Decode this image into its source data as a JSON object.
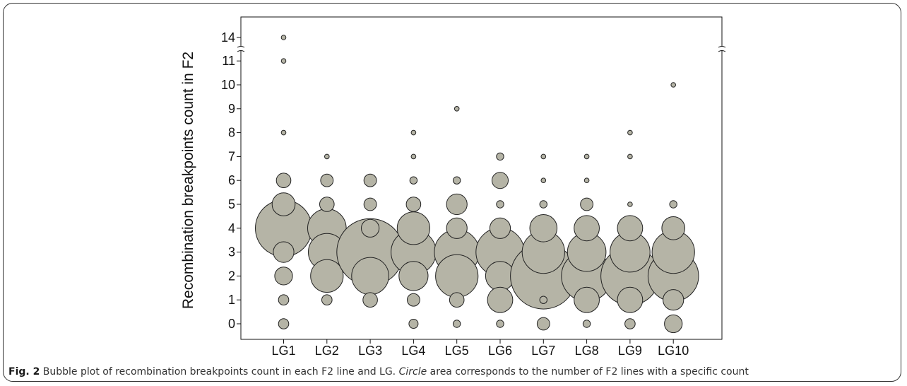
{
  "caption": {
    "label": "Fig. 2",
    "text_before": " Bubble plot of recombination breakpoints count in each F2 line and LG. ",
    "italic": "Circle",
    "text_after": " area corresponds to the number of F2 lines with a specific count"
  },
  "chart_data": {
    "type": "scatter",
    "subtype": "bubble",
    "title": "",
    "xlabel": "",
    "ylabel": "Recombination breakpoints count in F2",
    "categories": [
      "LG1",
      "LG2",
      "LG3",
      "LG4",
      "LG5",
      "LG6",
      "LG7",
      "LG8",
      "LG9",
      "LG10"
    ],
    "y_ticks": [
      0,
      1,
      2,
      3,
      4,
      5,
      6,
      7,
      8,
      9,
      10,
      11,
      14
    ],
    "y_axis_break": "between 11 and 14",
    "bubble_fill": "#b5b4a6",
    "bubble_stroke": "#222222",
    "size_meaning": "circle area = number of F2 lines with the count",
    "series": [
      {
        "category": "LG1",
        "points": [
          {
            "y": 0,
            "n": 1
          },
          {
            "y": 1,
            "n": 1
          },
          {
            "y": 2,
            "n": 3
          },
          {
            "y": 3,
            "n": 4
          },
          {
            "y": 4,
            "n": 30
          },
          {
            "y": 5,
            "n": 5
          },
          {
            "y": 6,
            "n": 2
          },
          {
            "y": 8,
            "n": 0.2
          },
          {
            "y": 11,
            "n": 0.2
          },
          {
            "y": 14,
            "n": 0.2
          }
        ]
      },
      {
        "category": "LG2",
        "points": [
          {
            "y": 1,
            "n": 1
          },
          {
            "y": 2,
            "n": 10
          },
          {
            "y": 3,
            "n": 13
          },
          {
            "y": 4,
            "n": 14
          },
          {
            "y": 5,
            "n": 2
          },
          {
            "y": 6,
            "n": 1.5
          },
          {
            "y": 7,
            "n": 0.2
          }
        ]
      },
      {
        "category": "LG3",
        "points": [
          {
            "y": 1,
            "n": 2
          },
          {
            "y": 2,
            "n": 13
          },
          {
            "y": 3,
            "n": 42
          },
          {
            "y": 4,
            "n": 3
          },
          {
            "y": 5,
            "n": 1.5
          },
          {
            "y": 6,
            "n": 1.5
          }
        ]
      },
      {
        "category": "LG4",
        "points": [
          {
            "y": 0,
            "n": 0.8
          },
          {
            "y": 1,
            "n": 1.5
          },
          {
            "y": 2,
            "n": 8
          },
          {
            "y": 3,
            "n": 19
          },
          {
            "y": 4,
            "n": 10
          },
          {
            "y": 5,
            "n": 2
          },
          {
            "y": 6,
            "n": 0.5
          },
          {
            "y": 7,
            "n": 0.2
          },
          {
            "y": 8,
            "n": 0.2
          }
        ]
      },
      {
        "category": "LG5",
        "points": [
          {
            "y": 0,
            "n": 0.5
          },
          {
            "y": 1,
            "n": 2
          },
          {
            "y": 2,
            "n": 17
          },
          {
            "y": 3,
            "n": 19
          },
          {
            "y": 4,
            "n": 4
          },
          {
            "y": 5,
            "n": 4
          },
          {
            "y": 6,
            "n": 0.5
          },
          {
            "y": 9,
            "n": 0.2
          }
        ]
      },
      {
        "category": "LG6",
        "points": [
          {
            "y": 0,
            "n": 0.5
          },
          {
            "y": 1,
            "n": 6
          },
          {
            "y": 2,
            "n": 8
          },
          {
            "y": 3,
            "n": 22
          },
          {
            "y": 4,
            "n": 4
          },
          {
            "y": 5,
            "n": 0.5
          },
          {
            "y": 6,
            "n": 2.5
          },
          {
            "y": 7,
            "n": 0.5
          }
        ]
      },
      {
        "category": "LG7",
        "points": [
          {
            "y": 0,
            "n": 1.5
          },
          {
            "y": 1,
            "n": 0.5
          },
          {
            "y": 2,
            "n": 41
          },
          {
            "y": 3,
            "n": 17
          },
          {
            "y": 4,
            "n": 7
          },
          {
            "y": 5,
            "n": 0.5
          },
          {
            "y": 6,
            "n": 0.2
          },
          {
            "y": 7,
            "n": 0.2
          }
        ]
      },
      {
        "category": "LG8",
        "points": [
          {
            "y": 0,
            "n": 0.5
          },
          {
            "y": 1,
            "n": 6
          },
          {
            "y": 2,
            "n": 24
          },
          {
            "y": 3,
            "n": 14
          },
          {
            "y": 4,
            "n": 6
          },
          {
            "y": 5,
            "n": 1.5
          },
          {
            "y": 6,
            "n": 0.2
          },
          {
            "y": 7,
            "n": 0.2
          }
        ]
      },
      {
        "category": "LG9",
        "points": [
          {
            "y": 0,
            "n": 1
          },
          {
            "y": 1,
            "n": 6
          },
          {
            "y": 2,
            "n": 32
          },
          {
            "y": 3,
            "n": 15
          },
          {
            "y": 4,
            "n": 6
          },
          {
            "y": 5,
            "n": 0.2
          },
          {
            "y": 7,
            "n": 0.2
          },
          {
            "y": 8,
            "n": 0.2
          }
        ]
      },
      {
        "category": "LG10",
        "points": [
          {
            "y": 0,
            "n": 3
          },
          {
            "y": 1,
            "n": 4
          },
          {
            "y": 2,
            "n": 24
          },
          {
            "y": 3,
            "n": 17
          },
          {
            "y": 4,
            "n": 5
          },
          {
            "y": 5,
            "n": 0.5
          },
          {
            "y": 10,
            "n": 0.2
          }
        ]
      }
    ]
  }
}
